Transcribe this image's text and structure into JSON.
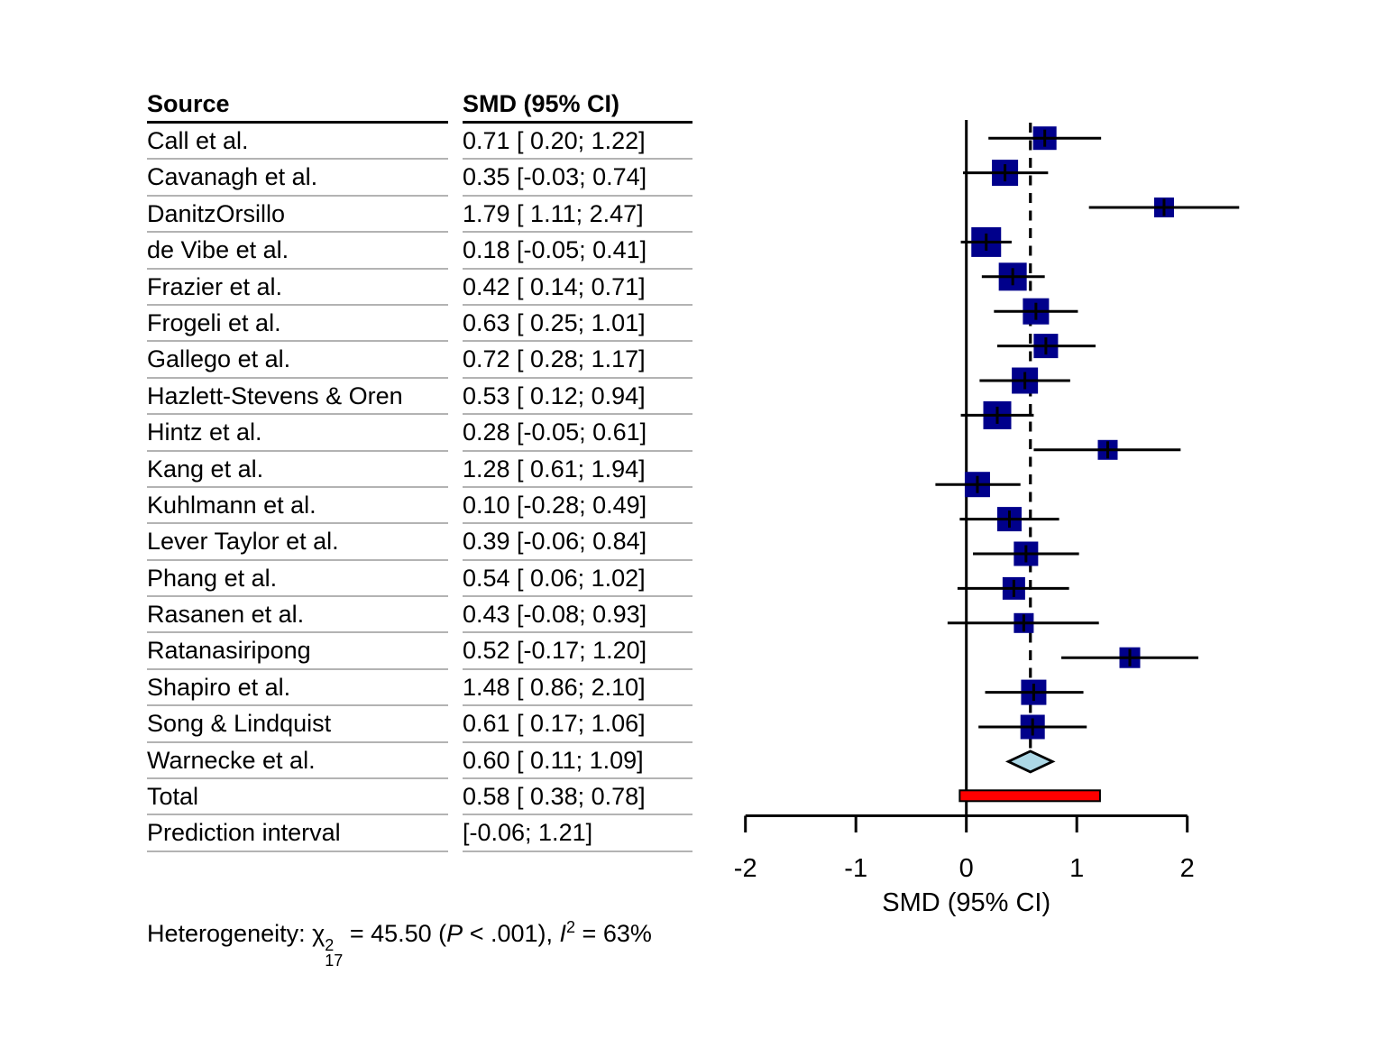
{
  "table": {
    "header": {
      "source": "Source",
      "smd": "SMD (95% CI)"
    }
  },
  "chart_data": {
    "type": "forest",
    "effect_measure": "SMD",
    "studies": [
      {
        "label": "Call et al.",
        "smd": 0.71,
        "low": 0.2,
        "high": 1.22,
        "ci_text": "0.71 [ 0.20; 1.22]",
        "sq": 26
      },
      {
        "label": "Cavanagh et al.",
        "smd": 0.35,
        "low": -0.03,
        "high": 0.74,
        "ci_text": "0.35 [-0.03; 0.74]",
        "sq": 29
      },
      {
        "label": "DanitzOrsillo",
        "smd": 1.79,
        "low": 1.11,
        "high": 2.47,
        "ci_text": "1.79 [ 1.11; 2.47]",
        "sq": 22
      },
      {
        "label": "de Vibe et al.",
        "smd": 0.18,
        "low": -0.05,
        "high": 0.41,
        "ci_text": "0.18 [-0.05; 0.41]",
        "sq": 33
      },
      {
        "label": "Frazier et al.",
        "smd": 0.42,
        "low": 0.14,
        "high": 0.71,
        "ci_text": "0.42 [ 0.14; 0.71]",
        "sq": 31
      },
      {
        "label": "Frogeli et al.",
        "smd": 0.63,
        "low": 0.25,
        "high": 1.01,
        "ci_text": "0.63 [ 0.25; 1.01]",
        "sq": 29
      },
      {
        "label": "Gallego et al.",
        "smd": 0.72,
        "low": 0.28,
        "high": 1.17,
        "ci_text": "0.72 [ 0.28; 1.17]",
        "sq": 27
      },
      {
        "label": "Hazlett-Stevens & Oren",
        "smd": 0.53,
        "low": 0.12,
        "high": 0.94,
        "ci_text": "0.53 [ 0.12; 0.94]",
        "sq": 29
      },
      {
        "label": "Hintz et al.",
        "smd": 0.28,
        "low": -0.05,
        "high": 0.61,
        "ci_text": "0.28 [-0.05; 0.61]",
        "sq": 31
      },
      {
        "label": "Kang et al.",
        "smd": 1.28,
        "low": 0.61,
        "high": 1.94,
        "ci_text": "1.28 [ 0.61; 1.94]",
        "sq": 22
      },
      {
        "label": "Kuhlmann et al.",
        "smd": 0.1,
        "low": -0.28,
        "high": 0.49,
        "ci_text": "0.10 [-0.28; 0.49]",
        "sq": 28
      },
      {
        "label": "Lever Taylor et al.",
        "smd": 0.39,
        "low": -0.06,
        "high": 0.84,
        "ci_text": "0.39 [-0.06; 0.84]",
        "sq": 27
      },
      {
        "label": "Phang et al.",
        "smd": 0.54,
        "low": 0.06,
        "high": 1.02,
        "ci_text": "0.54 [ 0.06; 1.02]",
        "sq": 27
      },
      {
        "label": "Rasanen et al.",
        "smd": 0.43,
        "low": -0.08,
        "high": 0.93,
        "ci_text": "0.43 [-0.08; 0.93]",
        "sq": 25
      },
      {
        "label": "Ratanasiripong",
        "smd": 0.52,
        "low": -0.17,
        "high": 1.2,
        "ci_text": "0.52 [-0.17; 1.20]",
        "sq": 22
      },
      {
        "label": "Shapiro et al.",
        "smd": 1.48,
        "low": 0.86,
        "high": 2.1,
        "ci_text": "1.48 [ 0.86; 2.10]",
        "sq": 23
      },
      {
        "label": "Song & Lindquist",
        "smd": 0.61,
        "low": 0.17,
        "high": 1.06,
        "ci_text": "0.61 [ 0.17; 1.06]",
        "sq": 28
      },
      {
        "label": "Warnecke et al.",
        "smd": 0.6,
        "low": 0.11,
        "high": 1.09,
        "ci_text": "0.60 [ 0.11; 1.09]",
        "sq": 27
      }
    ],
    "total": {
      "label": "Total",
      "smd": 0.58,
      "low": 0.38,
      "high": 0.78,
      "ci_text": "0.58 [ 0.38; 0.78]"
    },
    "prediction": {
      "label": "Prediction interval",
      "low": -0.06,
      "high": 1.21,
      "ci_text": "[-0.06; 1.21]"
    },
    "axis": {
      "xlim": [
        -2,
        2
      ],
      "ticks": [
        {
          "v": -2,
          "label": "-2"
        },
        {
          "v": -1,
          "label": "-1"
        },
        {
          "v": 0,
          "label": "0"
        },
        {
          "v": 1,
          "label": "1"
        },
        {
          "v": 2,
          "label": "2"
        }
      ],
      "label": "SMD (95% CI)"
    },
    "reference_line": 0,
    "pooled_dashed_line": 0.58,
    "colors": {
      "square": "#00008B",
      "diamond_fill": "#ADD8E6",
      "prediction_fill": "#FF0000",
      "line": "#000000",
      "separator": "#B3B3B3"
    }
  },
  "heterogeneity": {
    "prefix": "Heterogeneity: ",
    "chi": "χ",
    "chi_sup": "2",
    "chi_sub": "17",
    "eq": " = 45.50 (",
    "p_label": "P",
    "p_rest": " < .001), ",
    "i_label": "I",
    "i_sup": "2",
    "i_rest": " = 63%"
  }
}
